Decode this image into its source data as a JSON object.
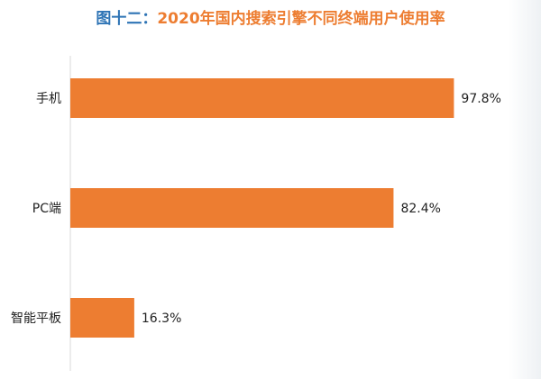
{
  "title": {
    "prefix": "图十二：",
    "main": "2020年国内搜索引擎不同终端用户使用率"
  },
  "colors": {
    "bar": "#ed7d31",
    "title_prefix": "#2e74b5",
    "title_main": "#ed7d31",
    "axis": "#d9d9d9"
  },
  "chart_data": {
    "type": "bar",
    "orientation": "horizontal",
    "title": "图十二：2020年国内搜索引擎不同终端用户使用率",
    "categories": [
      "手机",
      "PC端",
      "智能平板"
    ],
    "values": [
      97.8,
      82.4,
      16.3
    ],
    "value_labels": [
      "97.8%",
      "82.4%",
      "16.3%"
    ],
    "unit": "%",
    "xlim": [
      0,
      100
    ],
    "grid": false,
    "legend": "none"
  }
}
